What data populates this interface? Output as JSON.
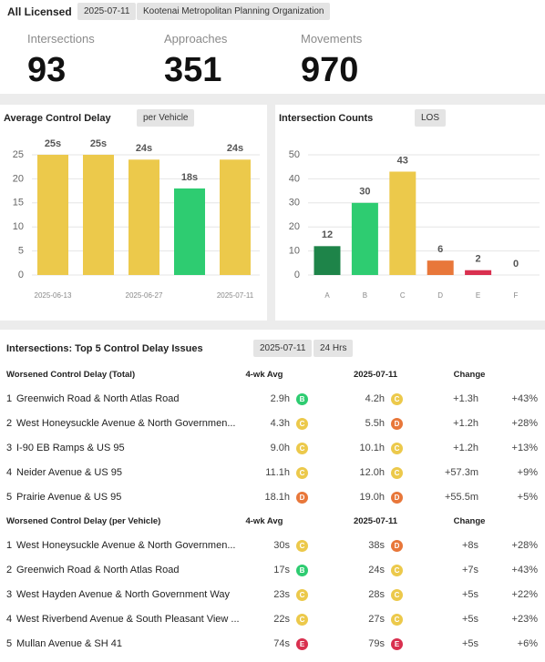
{
  "header": {
    "title": "All Licensed",
    "chips": [
      "2025-07-11",
      "Kootenai Metropolitan Planning Organization"
    ]
  },
  "kpis": [
    {
      "label": "Intersections",
      "value": 93
    },
    {
      "label": "Approaches",
      "value": 351
    },
    {
      "label": "Movements",
      "value": 970
    }
  ],
  "chart_data": [
    {
      "type": "bar",
      "title": "Average Control Delay",
      "toggle": "per Vehicle",
      "categories": [
        "2025-06-13",
        null,
        "2025-06-27",
        null,
        "2025-07-11"
      ],
      "values": [
        25,
        25,
        24,
        18,
        24
      ],
      "value_labels": [
        "25s",
        "25s",
        "24s",
        "18s",
        "24s"
      ],
      "colors": [
        "#ecc94b",
        "#ecc94b",
        "#ecc94b",
        "#2ecc71",
        "#ecc94b"
      ],
      "ylim": [
        0,
        25
      ],
      "yticks": [
        0,
        5,
        10,
        15,
        20,
        25
      ],
      "grid": true
    },
    {
      "type": "bar",
      "title": "Intersection Counts",
      "toggle": "LOS",
      "categories": [
        "A",
        "B",
        "C",
        "D",
        "E",
        "F"
      ],
      "values": [
        12,
        30,
        43,
        6,
        2,
        0
      ],
      "colors": [
        "#1e8449",
        "#2ecc71",
        "#ecc94b",
        "#e8773a",
        "#d9304f",
        "#9b1c2e"
      ],
      "ylim": [
        0,
        50
      ],
      "yticks": [
        0,
        10,
        20,
        30,
        40,
        50
      ],
      "grid": true
    }
  ],
  "table": {
    "title": "Intersections: Top 5 Control Delay Issues",
    "chips": [
      "2025-07-11",
      "24 Hrs"
    ],
    "groups": [
      {
        "title": "Worsened Control Delay (Total)",
        "columns": [
          "4-wk Avg",
          "2025-07-11",
          "Change"
        ],
        "rows": [
          {
            "rank": 1,
            "name": "Greenwich Road & North Atlas Road",
            "avg": "2.9h",
            "avg_los": "B",
            "today": "4.2h",
            "today_los": "C",
            "change": "+1.3h",
            "pct": "+43%"
          },
          {
            "rank": 2,
            "name": "West Honeysuckle Avenue & North Governmen...",
            "avg": "4.3h",
            "avg_los": "C",
            "today": "5.5h",
            "today_los": "D",
            "change": "+1.2h",
            "pct": "+28%"
          },
          {
            "rank": 3,
            "name": "I-90 EB Ramps & US 95",
            "avg": "9.0h",
            "avg_los": "C",
            "today": "10.1h",
            "today_los": "C",
            "change": "+1.2h",
            "pct": "+13%"
          },
          {
            "rank": 4,
            "name": "Neider Avenue & US 95",
            "avg": "11.1h",
            "avg_los": "C",
            "today": "12.0h",
            "today_los": "C",
            "change": "+57.3m",
            "pct": "+9%"
          },
          {
            "rank": 5,
            "name": "Prairie Avenue & US 95",
            "avg": "18.1h",
            "avg_los": "D",
            "today": "19.0h",
            "today_los": "D",
            "change": "+55.5m",
            "pct": "+5%"
          }
        ]
      },
      {
        "title": "Worsened Control Delay (per Vehicle)",
        "columns": [
          "4-wk Avg",
          "2025-07-11",
          "Change"
        ],
        "rows": [
          {
            "rank": 1,
            "name": "West Honeysuckle Avenue & North Governmen...",
            "avg": "30s",
            "avg_los": "C",
            "today": "38s",
            "today_los": "D",
            "change": "+8s",
            "pct": "+28%"
          },
          {
            "rank": 2,
            "name": "Greenwich Road & North Atlas Road",
            "avg": "17s",
            "avg_los": "B",
            "today": "24s",
            "today_los": "C",
            "change": "+7s",
            "pct": "+43%"
          },
          {
            "rank": 3,
            "name": "West Hayden Avenue & North Government Way",
            "avg": "23s",
            "avg_los": "C",
            "today": "28s",
            "today_los": "C",
            "change": "+5s",
            "pct": "+22%"
          },
          {
            "rank": 4,
            "name": "West Riverbend Avenue & South Pleasant View ...",
            "avg": "22s",
            "avg_los": "C",
            "today": "27s",
            "today_los": "C",
            "change": "+5s",
            "pct": "+23%"
          },
          {
            "rank": 5,
            "name": "Mullan Avenue & SH 41",
            "avg": "74s",
            "avg_los": "E",
            "today": "79s",
            "today_los": "E",
            "change": "+5s",
            "pct": "+6%"
          }
        ]
      }
    ]
  }
}
